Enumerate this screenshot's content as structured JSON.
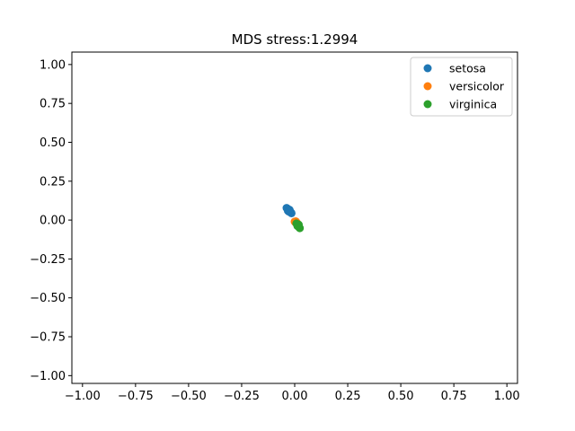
{
  "chart_data": {
    "type": "scatter",
    "title": "MDS stress:1.2994",
    "xlabel": "",
    "ylabel": "",
    "xlim": [
      -1.05,
      1.05
    ],
    "ylim": [
      -1.05,
      1.08
    ],
    "grid": false,
    "legend_position": "top-right",
    "xticks": [
      -1.0,
      -0.75,
      -0.5,
      -0.25,
      0.0,
      0.25,
      0.5,
      0.75,
      1.0
    ],
    "xtick_labels": [
      "−1.00",
      "−0.75",
      "−0.50",
      "−0.25",
      "0.00",
      "0.25",
      "0.50",
      "0.75",
      "1.00"
    ],
    "yticks": [
      1.0,
      0.75,
      0.5,
      0.25,
      0.0,
      -0.25,
      -0.5,
      -0.75,
      -1.0
    ],
    "ytick_labels": [
      "1.00",
      "0.75",
      "0.50",
      "0.25",
      "0.00",
      "−0.25",
      "−0.50",
      "−0.75",
      "−1.00"
    ],
    "series": [
      {
        "name": "setosa",
        "color": "#1f77b4",
        "points": [
          {
            "x": -0.038,
            "y": 0.078
          },
          {
            "x": -0.035,
            "y": 0.074
          },
          {
            "x": -0.033,
            "y": 0.071
          },
          {
            "x": -0.031,
            "y": 0.068
          },
          {
            "x": -0.029,
            "y": 0.065
          },
          {
            "x": -0.027,
            "y": 0.062
          },
          {
            "x": -0.025,
            "y": 0.059
          },
          {
            "x": -0.023,
            "y": 0.056
          },
          {
            "x": -0.021,
            "y": 0.053
          },
          {
            "x": -0.019,
            "y": 0.05
          },
          {
            "x": -0.017,
            "y": 0.047
          },
          {
            "x": -0.015,
            "y": 0.044
          },
          {
            "x": -0.032,
            "y": 0.06
          },
          {
            "x": -0.028,
            "y": 0.055
          },
          {
            "x": -0.024,
            "y": 0.066
          }
        ]
      },
      {
        "name": "versicolor",
        "color": "#ff7f0e",
        "points": [
          {
            "x": 0.0,
            "y": -0.01
          },
          {
            "x": 0.003,
            "y": -0.014
          },
          {
            "x": 0.006,
            "y": -0.018
          },
          {
            "x": 0.009,
            "y": -0.022
          },
          {
            "x": 0.012,
            "y": -0.026
          },
          {
            "x": 0.005,
            "y": -0.008
          },
          {
            "x": 0.01,
            "y": -0.016
          }
        ]
      },
      {
        "name": "virginica",
        "color": "#2ca02c",
        "points": [
          {
            "x": 0.008,
            "y": -0.022
          },
          {
            "x": 0.011,
            "y": -0.027
          },
          {
            "x": 0.014,
            "y": -0.031
          },
          {
            "x": 0.016,
            "y": -0.036
          },
          {
            "x": 0.018,
            "y": -0.04
          },
          {
            "x": 0.02,
            "y": -0.044
          },
          {
            "x": 0.022,
            "y": -0.048
          },
          {
            "x": 0.024,
            "y": -0.052
          },
          {
            "x": 0.013,
            "y": -0.038
          },
          {
            "x": 0.019,
            "y": -0.029
          }
        ]
      }
    ]
  }
}
